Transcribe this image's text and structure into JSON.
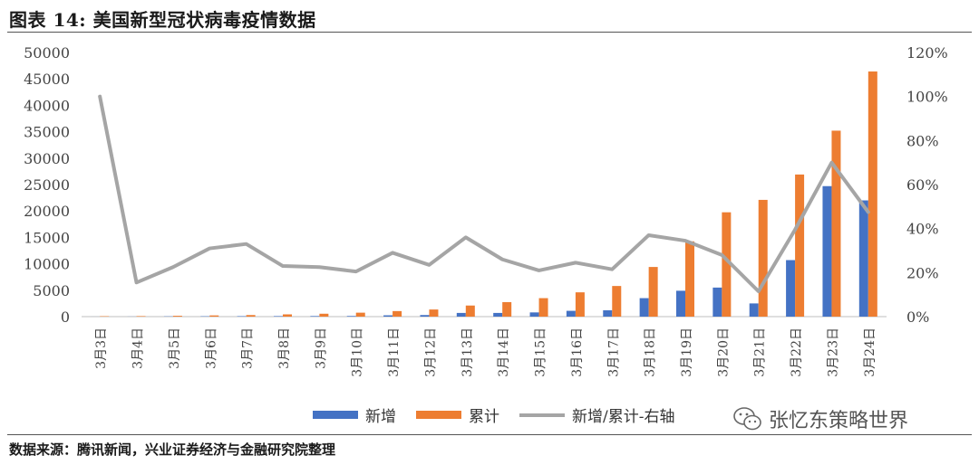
{
  "title": "图表 14:  美国新型冠状病毒疫情数据",
  "source": "数据来源：腾讯新闻，兴业证券经济与金融研究院整理",
  "watermark": "张忆东策略世界",
  "colors": {
    "new": "#4472C4",
    "cumulative": "#ED7D31",
    "ratio": "#A5A5A5",
    "axis": "#555555"
  },
  "chart_data": {
    "type": "bar",
    "categories": [
      "3月3日",
      "3月4日",
      "3月5日",
      "3月6日",
      "3月7日",
      "3月8日",
      "3月9日",
      "3月10日",
      "3月11日",
      "3月12日",
      "3月13日",
      "3月14日",
      "3月15日",
      "3月16日",
      "3月17日",
      "3月18日",
      "3月19日",
      "3月20日",
      "3月21日",
      "3月22日",
      "3月23日",
      "3月24日"
    ],
    "series": [
      {
        "name": "新增",
        "type": "bar",
        "axis": "left",
        "values": [
          5,
          15,
          50,
          70,
          90,
          100,
          110,
          120,
          250,
          300,
          700,
          700,
          800,
          1100,
          1200,
          3500,
          4900,
          5500,
          2500,
          10700,
          24700,
          22000
        ]
      },
      {
        "name": "累计",
        "type": "bar",
        "axis": "left",
        "values": [
          80,
          100,
          160,
          230,
          300,
          430,
          550,
          750,
          1050,
          1350,
          2100,
          2750,
          3500,
          4600,
          5800,
          9400,
          14250,
          19750,
          22100,
          26900,
          35200,
          46400
        ]
      },
      {
        "name": "新增/累计-右轴",
        "type": "line",
        "axis": "right",
        "values": [
          1.0,
          0.155,
          0.225,
          0.31,
          0.33,
          0.23,
          0.225,
          0.205,
          0.29,
          0.235,
          0.36,
          0.26,
          0.21,
          0.245,
          0.215,
          0.37,
          0.345,
          0.28,
          0.115,
          0.395,
          0.7,
          0.475
        ]
      }
    ],
    "y_left": {
      "min": 0,
      "max": 50000,
      "ticks": [
        "0",
        "5000",
        "10000",
        "15000",
        "20000",
        "25000",
        "30000",
        "35000",
        "40000",
        "45000",
        "50000"
      ]
    },
    "y_right": {
      "min": 0,
      "max": 1.2,
      "ticks": [
        "0%",
        "20%",
        "40%",
        "60%",
        "80%",
        "100%",
        "120%"
      ]
    },
    "grid": false,
    "legend_position": "bottom",
    "legend": [
      "新增",
      "累计",
      "新增/累计-右轴"
    ]
  }
}
